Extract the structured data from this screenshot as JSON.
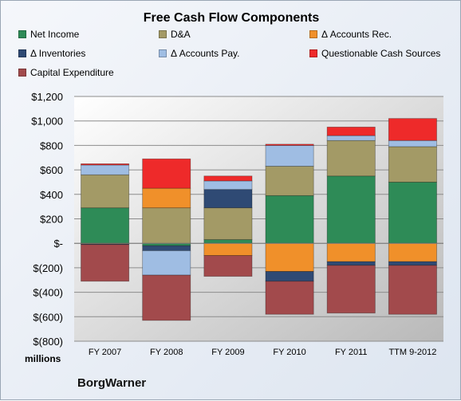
{
  "chart_data": {
    "type": "bar",
    "stacked": true,
    "title": "Free Cash Flow Components",
    "unit_label": "millions",
    "company": "BorgWarner",
    "categories": [
      "FY 2007",
      "FY 2008",
      "FY 2009",
      "FY 2010",
      "FY 2011",
      "TTM 9-2012"
    ],
    "ylim": [
      -800,
      1200
    ],
    "yticks": [
      1200,
      1000,
      800,
      600,
      400,
      200,
      0,
      -200,
      -400,
      -600,
      -800
    ],
    "ytick_labels": [
      "$1,200",
      "$1,000",
      "$800",
      "$600",
      "$400",
      "$200",
      "$-",
      "$(200)",
      "$(400)",
      "$(600)",
      "$(800)"
    ],
    "grid": true,
    "legend_position": "top",
    "series": [
      {
        "name": "Net Income",
        "color": "#2e8b57",
        "values": [
          290,
          -20,
          30,
          390,
          550,
          500
        ]
      },
      {
        "name": "D&A",
        "color": "#a39a66",
        "values": [
          270,
          290,
          260,
          240,
          290,
          290
        ]
      },
      {
        "name": "Δ Accounts Rec.",
        "color": "#f0902a",
        "values": [
          -5,
          160,
          -100,
          -230,
          -150,
          -150
        ]
      },
      {
        "name": "Δ Inventories",
        "color": "#2f4a74",
        "values": [
          -5,
          -40,
          150,
          -80,
          -30,
          -30
        ]
      },
      {
        "name": "Δ Accounts Pay.",
        "color": "#9fbde3",
        "values": [
          80,
          -200,
          70,
          170,
          40,
          50
        ]
      },
      {
        "name": "Questionable Cash Sources",
        "color": "#ee2a2a",
        "values": [
          10,
          240,
          40,
          10,
          70,
          180
        ]
      },
      {
        "name": "Capital Expenditure",
        "color": "#a24a4c",
        "values": [
          -300,
          -370,
          -170,
          -270,
          -390,
          -400
        ]
      }
    ]
  }
}
